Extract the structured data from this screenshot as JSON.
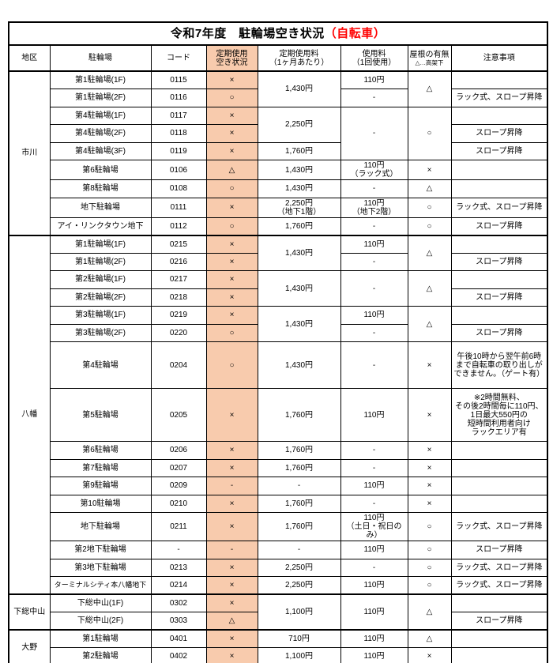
{
  "title": {
    "main": "令和7年度　駐輪場空き状況",
    "highlight": "（自転車）"
  },
  "colors": {
    "status_column_fill": "#F8CBAD",
    "title_highlight": "#FF0000",
    "border": "#000000"
  },
  "columns": {
    "district": "地区",
    "facility": "駐輪場",
    "code": "コード",
    "status": "定期使用\n空き状況",
    "monthly": "定期使用料\n（1ヶ月あたり）",
    "peruse": "使用料\n（1回使用）",
    "roof_main": "屋根の有無",
    "roof_sub": "△…高架下",
    "notes": "注意事項"
  },
  "table": {
    "rows": [
      {
        "cells": [
          {
            "col": "district",
            "t": "市川",
            "rs": 9
          },
          {
            "col": "facility",
            "t": "第1駐輪場(1F)"
          },
          {
            "col": "code",
            "t": "0115"
          },
          {
            "col": "status",
            "t": "×"
          },
          {
            "col": "monthly",
            "t": "1,430円",
            "rs": 2
          },
          {
            "col": "peruse",
            "t": "110円"
          },
          {
            "col": "roof",
            "t": "△",
            "rs": 2
          },
          {
            "col": "notes",
            "t": ""
          }
        ]
      },
      {
        "cells": [
          {
            "col": "facility",
            "t": "第1駐輪場(2F)"
          },
          {
            "col": "code",
            "t": "0116"
          },
          {
            "col": "status",
            "t": "○"
          },
          {
            "col": "peruse",
            "t": "-"
          },
          {
            "col": "notes",
            "t": "ラック式、スロープ昇降"
          }
        ]
      },
      {
        "cls": "grp",
        "cells": [
          {
            "col": "facility",
            "t": "第4駐輪場(1F)"
          },
          {
            "col": "code",
            "t": "0117"
          },
          {
            "col": "status",
            "t": "×"
          },
          {
            "col": "monthly",
            "t": "2,250円",
            "rs": 2
          },
          {
            "col": "peruse",
            "t": "-",
            "rs": 3
          },
          {
            "col": "roof",
            "t": "○",
            "rs": 3
          },
          {
            "col": "notes",
            "t": ""
          }
        ]
      },
      {
        "cells": [
          {
            "col": "facility",
            "t": "第4駐輪場(2F)"
          },
          {
            "col": "code",
            "t": "0118"
          },
          {
            "col": "status",
            "t": "×"
          },
          {
            "col": "notes",
            "t": "スロープ昇降"
          }
        ]
      },
      {
        "cells": [
          {
            "col": "facility",
            "t": "第4駐輪場(3F)"
          },
          {
            "col": "code",
            "t": "0119"
          },
          {
            "col": "status",
            "t": "×"
          },
          {
            "col": "monthly",
            "t": "1,760円"
          },
          {
            "col": "notes",
            "t": "スロープ昇降"
          }
        ]
      },
      {
        "cls": "grp",
        "cells": [
          {
            "col": "facility",
            "t": "第6駐輪場"
          },
          {
            "col": "code",
            "t": "0106"
          },
          {
            "col": "status",
            "t": "△"
          },
          {
            "col": "monthly",
            "t": "1,430円"
          },
          {
            "col": "peruse",
            "t": "110円\n（ラック式）"
          },
          {
            "col": "roof",
            "t": "×"
          },
          {
            "col": "notes",
            "t": ""
          }
        ]
      },
      {
        "cls": "grp",
        "cells": [
          {
            "col": "facility",
            "t": "第8駐輪場"
          },
          {
            "col": "code",
            "t": "0108"
          },
          {
            "col": "status",
            "t": "○"
          },
          {
            "col": "monthly",
            "t": "1,430円"
          },
          {
            "col": "peruse",
            "t": "-"
          },
          {
            "col": "roof",
            "t": "△"
          },
          {
            "col": "notes",
            "t": ""
          }
        ]
      },
      {
        "cls": "grp",
        "cells": [
          {
            "col": "facility",
            "t": "地下駐輪場"
          },
          {
            "col": "code",
            "t": "0111"
          },
          {
            "col": "status",
            "t": "×"
          },
          {
            "col": "monthly",
            "t": "2,250円\n（地下1階）"
          },
          {
            "col": "peruse",
            "t": "110円\n（地下2階）"
          },
          {
            "col": "roof",
            "t": "○"
          },
          {
            "col": "notes",
            "t": "ラック式、スロープ昇降"
          }
        ]
      },
      {
        "cls": "grp",
        "cells": [
          {
            "col": "facility",
            "t": "アイ・リンクタウン地下"
          },
          {
            "col": "code",
            "t": "0112"
          },
          {
            "col": "status",
            "t": "○"
          },
          {
            "col": "monthly",
            "t": "1,760円"
          },
          {
            "col": "peruse",
            "t": "-"
          },
          {
            "col": "roof",
            "t": "○"
          },
          {
            "col": "notes",
            "t": "スロープ昇降"
          }
        ]
      },
      {
        "cls": "dist",
        "cells": [
          {
            "col": "district",
            "t": "八幡",
            "rs": 16
          },
          {
            "col": "facility",
            "t": "第1駐輪場(1F)"
          },
          {
            "col": "code",
            "t": "0215"
          },
          {
            "col": "status",
            "t": "×"
          },
          {
            "col": "monthly",
            "t": "1,430円",
            "rs": 2
          },
          {
            "col": "peruse",
            "t": "110円"
          },
          {
            "col": "roof",
            "t": "△",
            "rs": 2
          },
          {
            "col": "notes",
            "t": ""
          }
        ]
      },
      {
        "cells": [
          {
            "col": "facility",
            "t": "第1駐輪場(2F)"
          },
          {
            "col": "code",
            "t": "0216"
          },
          {
            "col": "status",
            "t": "×"
          },
          {
            "col": "peruse",
            "t": "-"
          },
          {
            "col": "notes",
            "t": "スロープ昇降"
          }
        ]
      },
      {
        "cls": "grp",
        "cells": [
          {
            "col": "facility",
            "t": "第2駐輪場(1F)"
          },
          {
            "col": "code",
            "t": "0217"
          },
          {
            "col": "status",
            "t": "×"
          },
          {
            "col": "monthly",
            "t": "1,430円",
            "rs": 2
          },
          {
            "col": "peruse",
            "t": "-",
            "rs": 2
          },
          {
            "col": "roof",
            "t": "△",
            "rs": 2
          },
          {
            "col": "notes",
            "t": ""
          }
        ]
      },
      {
        "cells": [
          {
            "col": "facility",
            "t": "第2駐輪場(2F)"
          },
          {
            "col": "code",
            "t": "0218"
          },
          {
            "col": "status",
            "t": "×"
          },
          {
            "col": "notes",
            "t": "スロープ昇降"
          }
        ]
      },
      {
        "cls": "grp",
        "cells": [
          {
            "col": "facility",
            "t": "第3駐輪場(1F)"
          },
          {
            "col": "code",
            "t": "0219"
          },
          {
            "col": "status",
            "t": "×"
          },
          {
            "col": "monthly",
            "t": "1,430円",
            "rs": 2
          },
          {
            "col": "peruse",
            "t": "110円"
          },
          {
            "col": "roof",
            "t": "△",
            "rs": 2
          },
          {
            "col": "notes",
            "t": ""
          }
        ]
      },
      {
        "cells": [
          {
            "col": "facility",
            "t": "第3駐輪場(2F)"
          },
          {
            "col": "code",
            "t": "0220"
          },
          {
            "col": "status",
            "t": "○"
          },
          {
            "col": "peruse",
            "t": "-"
          },
          {
            "col": "notes",
            "t": "スロープ昇降"
          }
        ]
      },
      {
        "cls": "grp",
        "h": 59,
        "cells": [
          {
            "col": "facility",
            "t": "第4駐輪場"
          },
          {
            "col": "code",
            "t": "0204"
          },
          {
            "col": "status",
            "t": "○"
          },
          {
            "col": "monthly",
            "t": "1,430円"
          },
          {
            "col": "peruse",
            "t": "-"
          },
          {
            "col": "roof",
            "t": "×"
          },
          {
            "col": "notes",
            "t": "午後10時から翌午前6時\nまで自転車の取り出しが\nできません。（ゲート有）"
          }
        ]
      },
      {
        "cls": "grp",
        "h": 67,
        "cells": [
          {
            "col": "facility",
            "t": "第5駐輪場"
          },
          {
            "col": "code",
            "t": "0205"
          },
          {
            "col": "status",
            "t": "×"
          },
          {
            "col": "monthly",
            "t": "1,760円"
          },
          {
            "col": "peruse",
            "t": "110円"
          },
          {
            "col": "roof",
            "t": "×"
          },
          {
            "col": "notes",
            "t": "※2時間無料、\nその後2時間毎に110円、\n1日最大550円の\n短時間利用者向け\nラックエリア有"
          }
        ]
      },
      {
        "cls": "grp",
        "cells": [
          {
            "col": "facility",
            "t": "第6駐輪場"
          },
          {
            "col": "code",
            "t": "0206"
          },
          {
            "col": "status",
            "t": "×"
          },
          {
            "col": "monthly",
            "t": "1,760円"
          },
          {
            "col": "peruse",
            "t": "-"
          },
          {
            "col": "roof",
            "t": "×"
          },
          {
            "col": "notes",
            "t": ""
          }
        ]
      },
      {
        "cls": "grp",
        "cells": [
          {
            "col": "facility",
            "t": "第7駐輪場"
          },
          {
            "col": "code",
            "t": "0207"
          },
          {
            "col": "status",
            "t": "×"
          },
          {
            "col": "monthly",
            "t": "1,760円"
          },
          {
            "col": "peruse",
            "t": "-"
          },
          {
            "col": "roof",
            "t": "×"
          },
          {
            "col": "notes",
            "t": ""
          }
        ]
      },
      {
        "cls": "grp",
        "cells": [
          {
            "col": "facility",
            "t": "第9駐輪場"
          },
          {
            "col": "code",
            "t": "0209"
          },
          {
            "col": "status",
            "t": "-"
          },
          {
            "col": "monthly",
            "t": "-"
          },
          {
            "col": "peruse",
            "t": "110円"
          },
          {
            "col": "roof",
            "t": "×"
          },
          {
            "col": "notes",
            "t": ""
          }
        ]
      },
      {
        "cls": "grp",
        "cells": [
          {
            "col": "facility",
            "t": "第10駐輪場"
          },
          {
            "col": "code",
            "t": "0210"
          },
          {
            "col": "status",
            "t": "×"
          },
          {
            "col": "monthly",
            "t": "1,760円"
          },
          {
            "col": "peruse",
            "t": "-"
          },
          {
            "col": "roof",
            "t": "×"
          },
          {
            "col": "notes",
            "t": ""
          }
        ]
      },
      {
        "cls": "grp",
        "cells": [
          {
            "col": "facility",
            "t": "地下駐輪場"
          },
          {
            "col": "code",
            "t": "0211"
          },
          {
            "col": "status",
            "t": "×"
          },
          {
            "col": "monthly",
            "t": "1,760円"
          },
          {
            "col": "peruse",
            "t": "110円\n（土日・祝日のみ）"
          },
          {
            "col": "roof",
            "t": "○"
          },
          {
            "col": "notes",
            "t": "ラック式、スロープ昇降"
          }
        ]
      },
      {
        "cls": "grp",
        "cells": [
          {
            "col": "facility",
            "t": "第2地下駐輪場"
          },
          {
            "col": "code",
            "t": "-"
          },
          {
            "col": "status",
            "t": "-"
          },
          {
            "col": "monthly",
            "t": "-"
          },
          {
            "col": "peruse",
            "t": "110円"
          },
          {
            "col": "roof",
            "t": "○"
          },
          {
            "col": "notes",
            "t": "スロープ昇降"
          }
        ]
      },
      {
        "cls": "grp",
        "cells": [
          {
            "col": "facility",
            "t": "第3地下駐輪場"
          },
          {
            "col": "code",
            "t": "0213"
          },
          {
            "col": "status",
            "t": "×"
          },
          {
            "col": "monthly",
            "t": "2,250円"
          },
          {
            "col": "peruse",
            "t": "-"
          },
          {
            "col": "roof",
            "t": "○"
          },
          {
            "col": "notes",
            "t": "ラック式、スロープ昇降"
          }
        ]
      },
      {
        "cls": "grp",
        "cells": [
          {
            "col": "facility",
            "t": "ターミナルシティ本八幡地下"
          },
          {
            "col": "code",
            "t": "0214"
          },
          {
            "col": "status",
            "t": "×"
          },
          {
            "col": "monthly",
            "t": "2,250円"
          },
          {
            "col": "peruse",
            "t": "110円"
          },
          {
            "col": "roof",
            "t": "○"
          },
          {
            "col": "notes",
            "t": "ラック式、スロープ昇降"
          }
        ]
      },
      {
        "cls": "dist",
        "cells": [
          {
            "col": "district",
            "t": "下総中山",
            "rs": 2
          },
          {
            "col": "facility",
            "t": "下総中山(1F)"
          },
          {
            "col": "code",
            "t": "0302"
          },
          {
            "col": "status",
            "t": "×"
          },
          {
            "col": "monthly",
            "t": "1,100円",
            "rs": 2
          },
          {
            "col": "peruse",
            "t": "110円",
            "rs": 2
          },
          {
            "col": "roof",
            "t": "△",
            "rs": 2
          },
          {
            "col": "notes",
            "t": ""
          }
        ]
      },
      {
        "cells": [
          {
            "col": "facility",
            "t": "下総中山(2F)"
          },
          {
            "col": "code",
            "t": "0303"
          },
          {
            "col": "status",
            "t": "△"
          },
          {
            "col": "notes",
            "t": "スロープ昇降"
          }
        ]
      },
      {
        "cls": "dist",
        "cells": [
          {
            "col": "district",
            "t": "大野",
            "rs": 2
          },
          {
            "col": "facility",
            "t": "第1駐輪場"
          },
          {
            "col": "code",
            "t": "0401"
          },
          {
            "col": "status",
            "t": "×"
          },
          {
            "col": "monthly",
            "t": "710円"
          },
          {
            "col": "peruse",
            "t": "110円"
          },
          {
            "col": "roof",
            "t": "△"
          },
          {
            "col": "notes",
            "t": ""
          }
        ]
      },
      {
        "cls": "grp",
        "cells": [
          {
            "col": "facility",
            "t": "第2駐輪場"
          },
          {
            "col": "code",
            "t": "0402"
          },
          {
            "col": "status",
            "t": "×"
          },
          {
            "col": "monthly",
            "t": "1,100円"
          },
          {
            "col": "peruse",
            "t": "110円"
          },
          {
            "col": "roof",
            "t": "×"
          },
          {
            "col": "notes",
            "t": ""
          }
        ]
      }
    ]
  }
}
